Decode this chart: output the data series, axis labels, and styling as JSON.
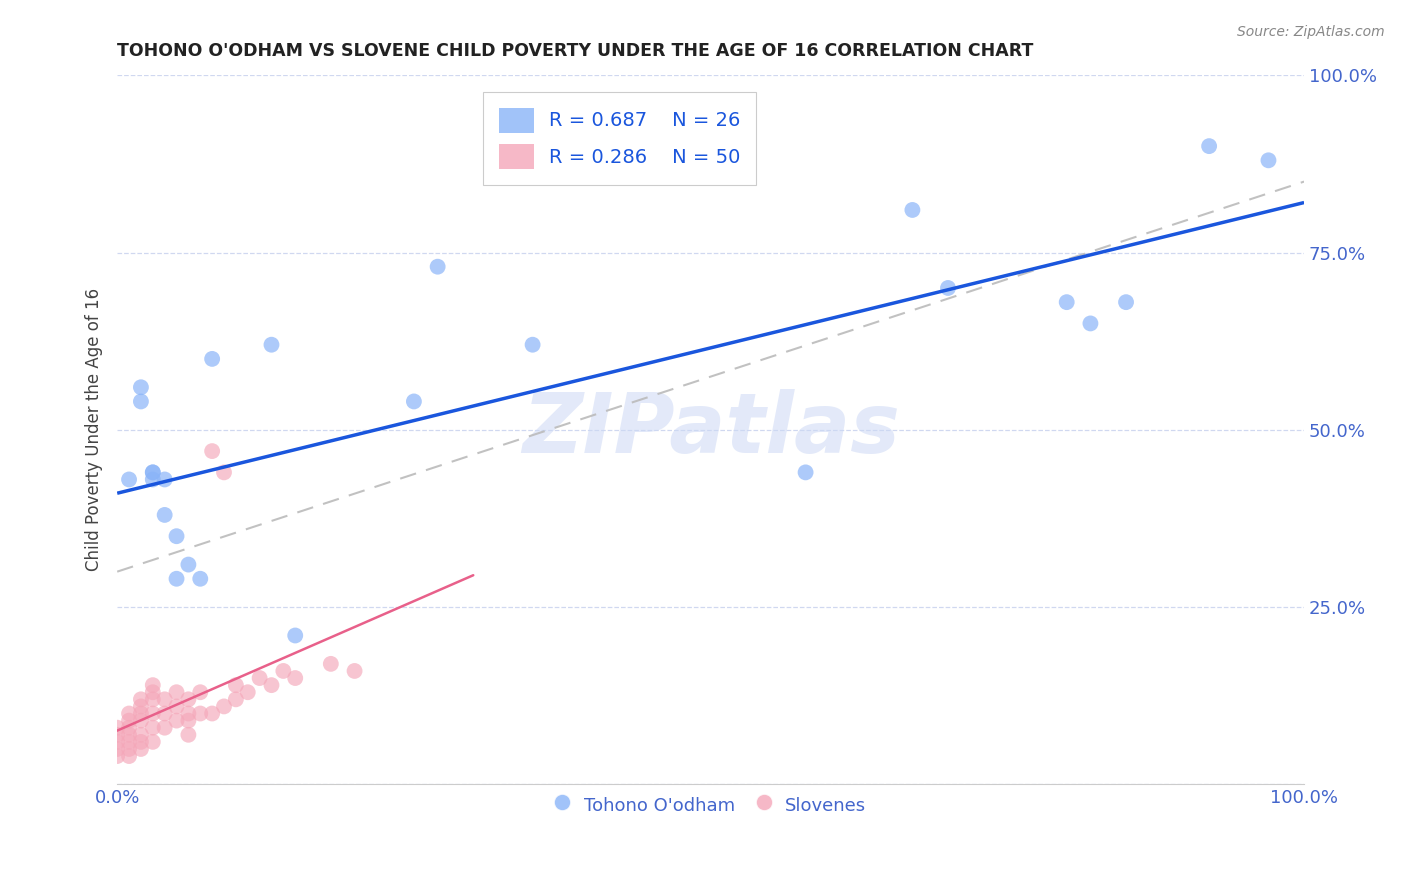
{
  "title": "TOHONO O'ODHAM VS SLOVENE CHILD POVERTY UNDER THE AGE OF 16 CORRELATION CHART",
  "source": "Source: ZipAtlas.com",
  "ylabel": "Child Poverty Under the Age of 16",
  "xlim": [
    0,
    1
  ],
  "ylim": [
    0,
    1
  ],
  "xticks": [
    0,
    0.25,
    0.5,
    0.75,
    1.0
  ],
  "yticks": [
    0,
    0.25,
    0.5,
    0.75,
    1.0
  ],
  "xticklabels": [
    "0.0%",
    "",
    "",
    "",
    "100.0%"
  ],
  "yticklabels_right": [
    "",
    "25.0%",
    "50.0%",
    "75.0%",
    "100.0%"
  ],
  "background_color": "#ffffff",
  "watermark": "ZIPatlas",
  "legend_r1": "R = 0.687",
  "legend_n1": "N = 26",
  "legend_r2": "R = 0.286",
  "legend_n2": "N = 50",
  "blue_color": "#8ab4f8",
  "pink_color": "#f4a7b9",
  "line_blue": "#1a56dd",
  "line_gray_dashed": "#bbbbbb",
  "line_pink_solid": "#e8608a",
  "axis_tick_color": "#4466cc",
  "grid_color": "#d0d8f0",
  "tohono_x": [
    0.01,
    0.02,
    0.02,
    0.03,
    0.03,
    0.03,
    0.04,
    0.04,
    0.05,
    0.05,
    0.06,
    0.07,
    0.08,
    0.13,
    0.15,
    0.25,
    0.27,
    0.35,
    0.58,
    0.67,
    0.7,
    0.8,
    0.82,
    0.85,
    0.92,
    0.97
  ],
  "tohono_y": [
    0.43,
    0.56,
    0.54,
    0.43,
    0.44,
    0.44,
    0.38,
    0.43,
    0.35,
    0.29,
    0.31,
    0.29,
    0.6,
    0.62,
    0.21,
    0.54,
    0.73,
    0.62,
    0.44,
    0.81,
    0.7,
    0.68,
    0.65,
    0.68,
    0.9,
    0.88
  ],
  "slovene_x": [
    0.0,
    0.0,
    0.0,
    0.0,
    0.0,
    0.01,
    0.01,
    0.01,
    0.01,
    0.01,
    0.01,
    0.01,
    0.02,
    0.02,
    0.02,
    0.02,
    0.02,
    0.02,
    0.02,
    0.03,
    0.03,
    0.03,
    0.03,
    0.03,
    0.03,
    0.04,
    0.04,
    0.04,
    0.05,
    0.05,
    0.05,
    0.06,
    0.06,
    0.06,
    0.06,
    0.07,
    0.07,
    0.08,
    0.08,
    0.09,
    0.09,
    0.1,
    0.1,
    0.11,
    0.12,
    0.13,
    0.14,
    0.15,
    0.18,
    0.2
  ],
  "slovene_y": [
    0.04,
    0.05,
    0.06,
    0.07,
    0.08,
    0.04,
    0.05,
    0.06,
    0.07,
    0.08,
    0.09,
    0.1,
    0.05,
    0.06,
    0.07,
    0.09,
    0.1,
    0.11,
    0.12,
    0.06,
    0.08,
    0.1,
    0.12,
    0.13,
    0.14,
    0.08,
    0.1,
    0.12,
    0.09,
    0.11,
    0.13,
    0.07,
    0.09,
    0.1,
    0.12,
    0.1,
    0.13,
    0.1,
    0.47,
    0.11,
    0.44,
    0.12,
    0.14,
    0.13,
    0.15,
    0.14,
    0.16,
    0.15,
    0.17,
    0.16
  ],
  "blue_line_x0": 0.0,
  "blue_line_y0": 0.35,
  "blue_line_x1": 1.0,
  "blue_line_y1": 0.85,
  "gray_line_x0": 0.0,
  "gray_line_y0": 0.3,
  "gray_line_x1": 1.0,
  "gray_line_y1": 0.85,
  "pink_line_x0": 0.0,
  "pink_line_y0": 0.1,
  "pink_line_x1": 0.3,
  "pink_line_y1": 0.32
}
